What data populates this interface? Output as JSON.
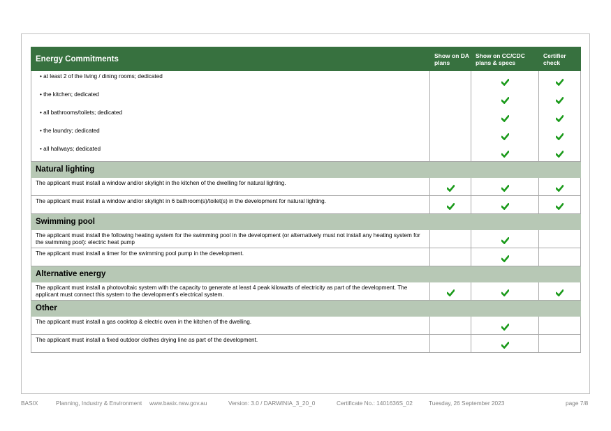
{
  "table": {
    "header": {
      "title": "Energy Commitments",
      "col_da": "Show on DA plans",
      "col_cc": "Show on CC/CDC plans & specs",
      "col_cert": "Certifier check"
    },
    "bullets": [
      {
        "text": "at least 2 of the living / dining rooms; dedicated",
        "da": false,
        "cc": true,
        "cert": true
      },
      {
        "text": "the kitchen; dedicated",
        "da": false,
        "cc": true,
        "cert": true
      },
      {
        "text": "all bathrooms/toilets; dedicated",
        "da": false,
        "cc": true,
        "cert": true
      },
      {
        "text": "the laundry; dedicated",
        "da": false,
        "cc": true,
        "cert": true
      },
      {
        "text": "all hallways; dedicated",
        "da": false,
        "cc": true,
        "cert": true
      }
    ],
    "sections": [
      {
        "title": "Natural lighting",
        "rows": [
          {
            "text": "The applicant must install a window and/or skylight in the kitchen of the dwelling for natural lighting.",
            "da": true,
            "cc": true,
            "cert": true
          },
          {
            "text": "The applicant must install a window and/or skylight in 6 bathroom(s)/toilet(s) in the development for natural lighting.",
            "da": true,
            "cc": true,
            "cert": true
          }
        ]
      },
      {
        "title": "Swimming pool",
        "rows": [
          {
            "text": "The applicant must install the following heating system for the swimming pool in the development (or alternatively must not install any heating system for the swimming pool): electric heat pump",
            "da": false,
            "cc": true,
            "cert": false
          },
          {
            "text": "The applicant must install a timer for the swimming pool pump in the development.",
            "da": false,
            "cc": true,
            "cert": false
          }
        ]
      },
      {
        "title": "Alternative energy",
        "rows": [
          {
            "text": "The applicant must install a photovoltaic system with the capacity to generate at least 4 peak kilowatts of electricity as part of the development. The applicant must connect this system to the development's electrical system.",
            "da": true,
            "cc": true,
            "cert": true
          }
        ]
      },
      {
        "title": "Other",
        "rows": [
          {
            "text": "The applicant must install a gas cooktop & electric oven in the kitchen of the dwelling.",
            "da": false,
            "cc": true,
            "cert": false
          },
          {
            "text": "The applicant must install a fixed outdoor clothes drying line as part of the development.",
            "da": false,
            "cc": true,
            "cert": false
          }
        ]
      }
    ]
  },
  "footer": {
    "basix": "BASIX",
    "department": "Planning, Industry & Environment",
    "website": "www.basix.nsw.gov.au",
    "version": "Version: 3.0 / DARWINIA_3_20_0",
    "certificate": "Certificate No.: 1401636S_02",
    "date": "Tuesday, 26 September 2023",
    "page": "page 7/8"
  },
  "colors": {
    "header_green": "#37713f",
    "section_green": "#b7c8b5",
    "tick_green": "#1a9a1a"
  },
  "icons": {
    "tick": "check-icon"
  }
}
